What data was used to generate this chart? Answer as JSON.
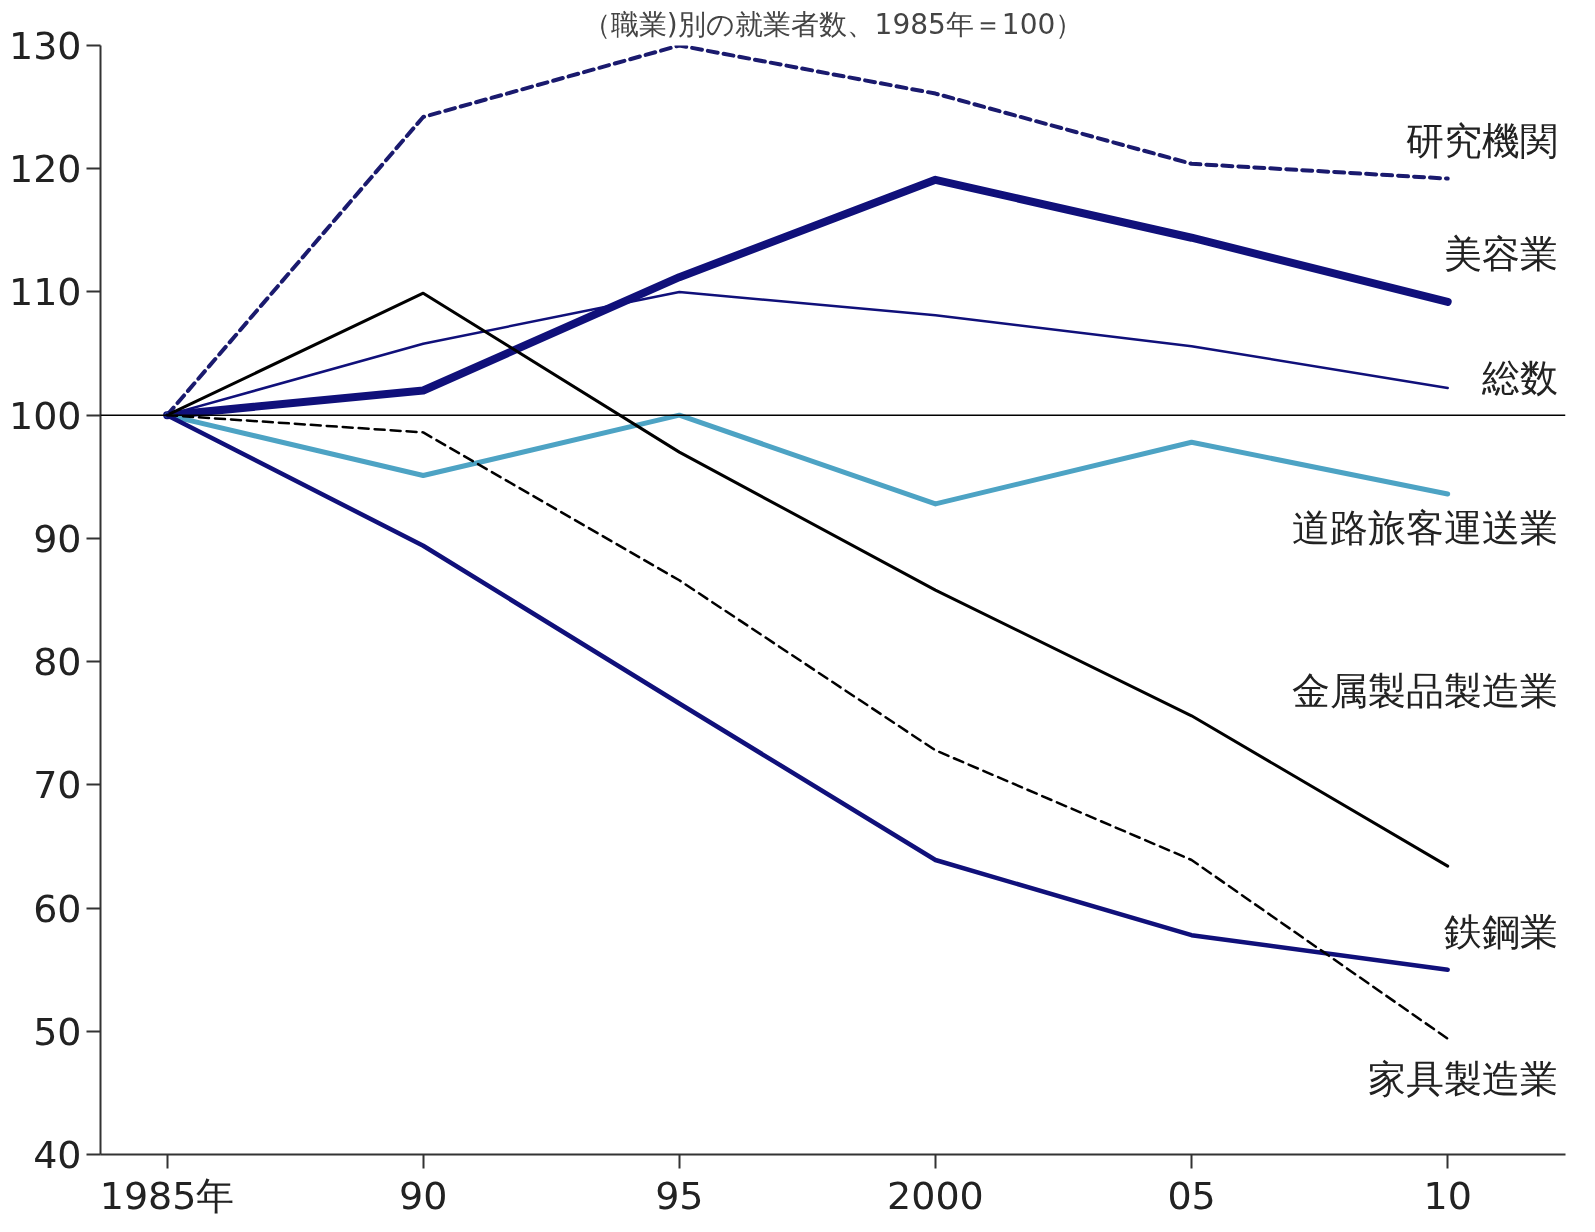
{
  "chart_data": {
    "type": "line",
    "subtitle": "（職業)別の就業者数、1985年＝100）",
    "x": [
      1985,
      1990,
      1995,
      2000,
      2005,
      2010
    ],
    "xlim": [
      1983.7,
      2012.3
    ],
    "xticks": [
      {
        "value": 1985,
        "label": "1985年"
      },
      {
        "value": 1990,
        "label": "90"
      },
      {
        "value": 1995,
        "label": "95"
      },
      {
        "value": 2000,
        "label": "2000"
      },
      {
        "value": 2005,
        "label": "05"
      },
      {
        "value": 2010,
        "label": "10"
      }
    ],
    "ylim": [
      40,
      130
    ],
    "yticks": [
      40,
      50,
      60,
      70,
      80,
      90,
      100,
      110,
      120,
      130
    ],
    "grid": false,
    "legend": false,
    "marker": "none",
    "ref_lines": [
      {
        "axis": "y",
        "value": 100,
        "color": "#000000",
        "line_style": "solid"
      }
    ],
    "series": [
      {
        "name": "研究機関",
        "color": "#1a1a6e",
        "line_style": "dashed",
        "values": [
          100,
          124.2,
          130,
          126.1,
          120.4,
          119.2
        ]
      },
      {
        "name": "美容業",
        "color": "#10107a",
        "line_style": "solid",
        "values": [
          100,
          102,
          111.2,
          119.1,
          114.4,
          109.2
        ]
      },
      {
        "name": "総数",
        "color": "#10107a",
        "line_style": "solid",
        "values": [
          100,
          105.8,
          110,
          108.1,
          105.6,
          102.2
        ]
      },
      {
        "name": "道路旅客運送業",
        "color": "#4da3c4",
        "line_style": "solid",
        "values": [
          100,
          95.1,
          100,
          92.8,
          97.8,
          93.6
        ]
      },
      {
        "name": "金属製品製造業",
        "color": "#000000",
        "line_style": "solid",
        "values": [
          100,
          109.9,
          97.0,
          85.8,
          75.6,
          63.4
        ]
      },
      {
        "name": "鉄鋼業",
        "color": "#10107a",
        "line_style": "solid",
        "values": [
          100,
          89.4,
          76.6,
          63.9,
          57.8,
          55.0
        ]
      },
      {
        "name": "家具製造業",
        "color": "#000000",
        "line_style": "dashed",
        "values": [
          100,
          98.6,
          86.6,
          72.8,
          63.9,
          49.4
        ]
      }
    ]
  }
}
